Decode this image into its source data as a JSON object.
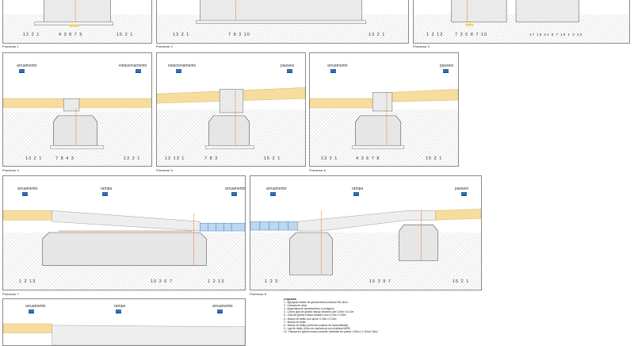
{
  "panels": [
    {
      "id": "p1",
      "caption": "Pormenor 1",
      "left_label": "",
      "right_label": "",
      "nums_left": "12 2 1",
      "nums_mid": "4 3 8 7 5",
      "nums_right": "15 2 1"
    },
    {
      "id": "p2",
      "caption": "Pormenor 2",
      "left_label": "",
      "right_label": "",
      "nums_left": "13 2 1",
      "nums_mid": "7 8 3 10",
      "nums_right": "13 2 1"
    },
    {
      "id": "p3",
      "caption": "Pormenor 3",
      "left_label": "",
      "right_label": "",
      "nums_left": "1 2 13",
      "nums_mid": "7 3 5 8 7 10",
      "nums_right": "17 18 21 8 7 19 1 2 13"
    },
    {
      "id": "p4",
      "caption": "Pormenor 4",
      "left_label": "arruamento",
      "right_label": "estacionamento",
      "nums_left": "13 2 1",
      "nums_mid": "7 8 4 3",
      "nums_right": "13 2 1"
    },
    {
      "id": "p5",
      "caption": "Pormenor 5",
      "left_label": "estacionamento",
      "right_label": "passeio",
      "nums_left": "12 13 1",
      "nums_mid": "7 8 3",
      "nums_right": "15 2 1"
    },
    {
      "id": "p6",
      "caption": "Pormenor 6",
      "left_label": "arruamento",
      "right_label": "passeio",
      "nums_left": "13 2 1",
      "nums_mid": "4 3 6 7 8",
      "nums_right": "15 2 1"
    },
    {
      "id": "p7",
      "caption": "Pormenor 7",
      "left_label": "arruamento",
      "mid_label": "rampa",
      "right_label": "arruamento",
      "nums_left": "1 2 13",
      "nums_mid": "10 3 6 7",
      "nums_right": "1 2 13"
    },
    {
      "id": "p8",
      "caption": "Pormenor 8",
      "left_label": "arruamento",
      "mid_label": "rampa",
      "right_label": "passeio",
      "nums_left": "1 2 3",
      "nums_mid": "15 3 9 7",
      "nums_right": "15 2 1"
    },
    {
      "id": "p9",
      "caption": "",
      "left_label": "arruamento",
      "mid_label": "rampa",
      "right_label": "arruamento"
    }
  ],
  "legend": {
    "title": "Legenda",
    "items": [
      "1 - Agregado britado de granulometria extensa 0/31,5mm",
      "2 - Camada de areia",
      "3 - Argamassa de assentamento e (colagem)",
      "4 - Cunha guia de granito maciço amarelo com 0,30m x 0,14m",
      "5 - Guia de granito maciço amarelo com 0,20m x 0,25m",
      "6 - Maciço de betão com apoio: 0,15m x 0,15m",
      "7 - Maciço de betão",
      "8 - Maciço de betão (conforme projecto de especialidade)",
      "9 - Laje de betão (15cm de espessura) com malhasol AR50",
      "10 - Rampa em granito maciço amarelo (medidas em planta: 1,80m x 1,10m/1,18m)"
    ]
  },
  "colors": {
    "pavement": "#f6dd9e",
    "hatch": "#9b9b9b",
    "concrete": "#e6e6e6",
    "dim": "#e06010",
    "flag": "#2f6fb5",
    "ramp_tile": "#bcd7f0"
  }
}
